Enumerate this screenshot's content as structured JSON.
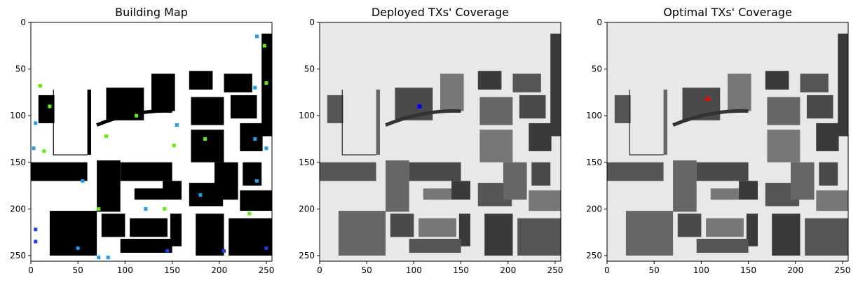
{
  "chart_data": [
    {
      "type": "heatmap",
      "title": "Building Map",
      "xlabel": "",
      "ylabel": "",
      "xlim": [
        0,
        256
      ],
      "ylim": [
        256,
        0
      ],
      "x_ticks": [
        0,
        50,
        100,
        150,
        200,
        250
      ],
      "y_ticks": [
        0,
        50,
        100,
        150,
        200,
        250
      ],
      "background": "#ffffff",
      "buildings": [
        {
          "x": 245,
          "y": 12,
          "w": 11,
          "h": 110
        },
        {
          "x": 8,
          "y": 78,
          "w": 17,
          "h": 30
        },
        {
          "x": 60,
          "y": 72,
          "w": 4,
          "h": 70
        },
        {
          "x": 80,
          "y": 70,
          "w": 40,
          "h": 35
        },
        {
          "x": 128,
          "y": 55,
          "w": 25,
          "h": 40
        },
        {
          "x": 168,
          "y": 52,
          "w": 25,
          "h": 20
        },
        {
          "x": 205,
          "y": 55,
          "w": 30,
          "h": 20
        },
        {
          "x": 170,
          "y": 80,
          "w": 35,
          "h": 30
        },
        {
          "x": 212,
          "y": 78,
          "w": 28,
          "h": 25
        },
        {
          "x": 170,
          "y": 115,
          "w": 35,
          "h": 35
        },
        {
          "x": 222,
          "y": 108,
          "w": 24,
          "h": 30
        },
        {
          "x": 0,
          "y": 150,
          "w": 60,
          "h": 20
        },
        {
          "x": 70,
          "y": 148,
          "w": 25,
          "h": 55
        },
        {
          "x": 95,
          "y": 150,
          "w": 55,
          "h": 20
        },
        {
          "x": 110,
          "y": 178,
          "w": 32,
          "h": 12
        },
        {
          "x": 140,
          "y": 170,
          "w": 20,
          "h": 20
        },
        {
          "x": 168,
          "y": 172,
          "w": 36,
          "h": 25
        },
        {
          "x": 195,
          "y": 150,
          "w": 25,
          "h": 40
        },
        {
          "x": 225,
          "y": 150,
          "w": 20,
          "h": 25
        },
        {
          "x": 222,
          "y": 180,
          "w": 34,
          "h": 22
        },
        {
          "x": 175,
          "y": 205,
          "w": 30,
          "h": 45
        },
        {
          "x": 210,
          "y": 210,
          "w": 46,
          "h": 40
        },
        {
          "x": 20,
          "y": 202,
          "w": 50,
          "h": 48
        },
        {
          "x": 75,
          "y": 205,
          "w": 25,
          "h": 25
        },
        {
          "x": 105,
          "y": 210,
          "w": 40,
          "h": 20
        },
        {
          "x": 148,
          "y": 205,
          "w": 12,
          "h": 35
        },
        {
          "x": 95,
          "y": 232,
          "w": 55,
          "h": 15
        }
      ],
      "markers": [
        {
          "x": 10,
          "y": 68,
          "color": "#5ef000"
        },
        {
          "x": 20,
          "y": 90,
          "color": "#5ef000"
        },
        {
          "x": 5,
          "y": 108,
          "color": "#1a9cf0"
        },
        {
          "x": 3,
          "y": 135,
          "color": "#1a9cf0"
        },
        {
          "x": 14,
          "y": 138,
          "color": "#5ef000"
        },
        {
          "x": 80,
          "y": 122,
          "color": "#5ef000"
        },
        {
          "x": 112,
          "y": 100,
          "color": "#5ef000"
        },
        {
          "x": 155,
          "y": 110,
          "color": "#1a9cf0"
        },
        {
          "x": 152,
          "y": 132,
          "color": "#5ef000"
        },
        {
          "x": 240,
          "y": 15,
          "color": "#1a9cf0"
        },
        {
          "x": 248,
          "y": 25,
          "color": "#5ef000"
        },
        {
          "x": 238,
          "y": 70,
          "color": "#1a9cf0"
        },
        {
          "x": 250,
          "y": 65,
          "color": "#5ef000"
        },
        {
          "x": 238,
          "y": 125,
          "color": "#1a9cf0"
        },
        {
          "x": 250,
          "y": 135,
          "color": "#1a9cf0"
        },
        {
          "x": 185,
          "y": 125,
          "color": "#5ef000"
        },
        {
          "x": 55,
          "y": 170,
          "color": "#1a9cf0"
        },
        {
          "x": 72,
          "y": 200,
          "color": "#5ef000"
        },
        {
          "x": 122,
          "y": 200,
          "color": "#1a9cf0"
        },
        {
          "x": 142,
          "y": 200,
          "color": "#5ef000"
        },
        {
          "x": 180,
          "y": 185,
          "color": "#1a9cf0"
        },
        {
          "x": 240,
          "y": 170,
          "color": "#1a9cf0"
        },
        {
          "x": 5,
          "y": 222,
          "color": "#1a40f0"
        },
        {
          "x": 5,
          "y": 235,
          "color": "#1a40f0"
        },
        {
          "x": 50,
          "y": 242,
          "color": "#1a9cf0"
        },
        {
          "x": 72,
          "y": 252,
          "color": "#1a9cf0"
        },
        {
          "x": 82,
          "y": 252,
          "color": "#1a9cf0"
        },
        {
          "x": 145,
          "y": 245,
          "color": "#1a40f0"
        },
        {
          "x": 205,
          "y": 245,
          "color": "#1a40f0"
        },
        {
          "x": 250,
          "y": 242,
          "color": "#1a40f0"
        },
        {
          "x": 232,
          "y": 205,
          "color": "#5ef000"
        }
      ]
    },
    {
      "type": "heatmap",
      "title": "Deployed TXs' Coverage",
      "xlabel": "",
      "ylabel": "",
      "xlim": [
        0,
        256
      ],
      "ylim": [
        256,
        0
      ],
      "x_ticks": [
        0,
        50,
        100,
        150,
        200,
        250
      ],
      "y_ticks": [
        0,
        50,
        100,
        150,
        200,
        250
      ],
      "background": "#e8e8e8",
      "tx": {
        "x": 106,
        "y": 90,
        "color": "#0000ff"
      }
    },
    {
      "type": "heatmap",
      "title": "Optimal TXs' Coverage",
      "xlabel": "",
      "ylabel": "",
      "xlim": [
        0,
        256
      ],
      "ylim": [
        256,
        0
      ],
      "x_ticks": [
        0,
        50,
        100,
        150,
        200,
        250
      ],
      "y_ticks": [
        0,
        50,
        100,
        150,
        200,
        250
      ],
      "background": "#e8e8e8",
      "tx": {
        "x": 107,
        "y": 82,
        "color": "#ff0000"
      }
    }
  ]
}
